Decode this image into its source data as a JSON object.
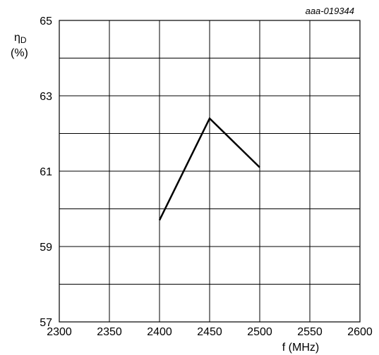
{
  "chart_data": {
    "type": "line",
    "figure_code": "aaa-019344",
    "ylabel_symbol": "η",
    "ylabel_sub": "D",
    "ylabel_unit": "(%)",
    "xlabel": "f (MHz)",
    "xlim": [
      2300,
      2600
    ],
    "ylim": [
      57,
      65
    ],
    "x_ticks": [
      2300,
      2350,
      2400,
      2450,
      2500,
      2550,
      2600
    ],
    "y_ticks": [
      57,
      59,
      61,
      63,
      65
    ],
    "y_minor_grid_step": 1,
    "grid": true,
    "series": [
      {
        "x": [
          2400,
          2450,
          2500
        ],
        "y": [
          59.7,
          62.4,
          61.1
        ]
      }
    ]
  }
}
